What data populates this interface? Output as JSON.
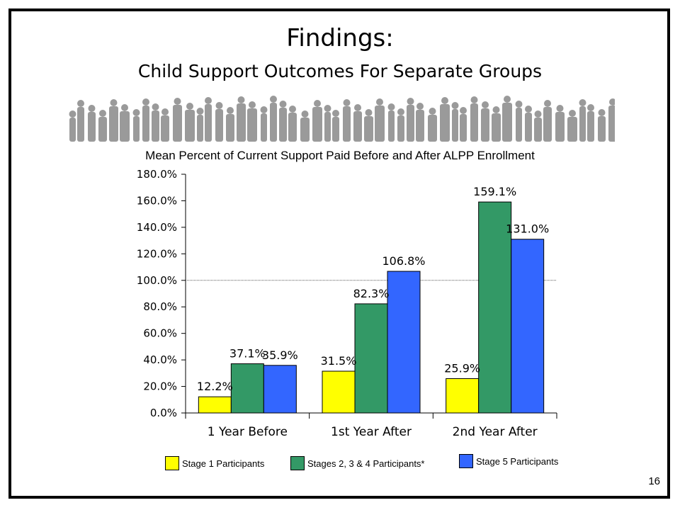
{
  "slide": {
    "title": "Findings:",
    "subtitle": "Child Support Outcomes For Separate Groups",
    "page_number": "16",
    "banner_icon": "people-silhouette-icon"
  },
  "chart_data": {
    "type": "bar",
    "title": "Mean Percent of Current Support Paid Before and After ALPP Enrollment",
    "categories": [
      "1 Year Before",
      "1st Year After",
      "2nd Year After"
    ],
    "series": [
      {
        "name": "Stage 1 Participants",
        "color": "#ffff00",
        "values": [
          12.2,
          31.5,
          25.9
        ],
        "labels": [
          "12.2%",
          "31.5%",
          "25.9%"
        ]
      },
      {
        "name": "Stages 2, 3 & 4 Participants*",
        "color": "#339966",
        "values": [
          37.1,
          82.3,
          159.1
        ],
        "labels": [
          "37.1%",
          "82.3%",
          "159.1%"
        ]
      },
      {
        "name": "Stage 5 Participants",
        "color": "#3366ff",
        "values": [
          35.9,
          106.8,
          131.0
        ],
        "labels": [
          "35.9%",
          "106.8%",
          "131.0%"
        ]
      }
    ],
    "ylim": [
      0,
      180
    ],
    "yticks": [
      "0.0%",
      "20.0%",
      "40.0%",
      "60.0%",
      "80.0%",
      "100.0%",
      "120.0%",
      "140.0%",
      "160.0%",
      "180.0%"
    ],
    "reference_line": 100,
    "legend_position": "bottom",
    "grid": false
  }
}
